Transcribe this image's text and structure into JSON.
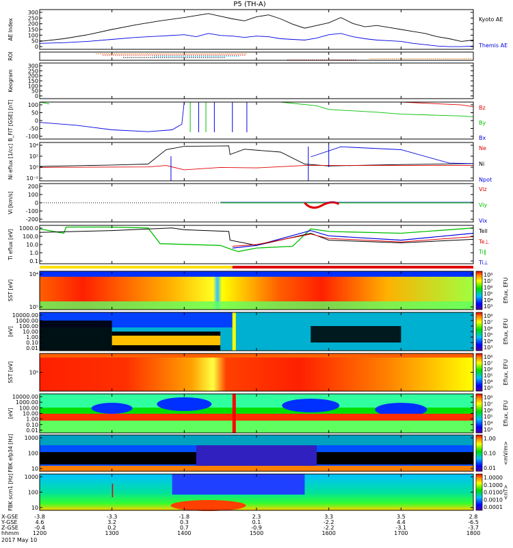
{
  "title": "P5 (TH-A)",
  "date_label": "2017 May 10",
  "colors": {
    "red": "#e00000",
    "green": "#00c000",
    "blue": "#0000e0",
    "black": "#000000",
    "orange": "#ff8000",
    "yellow": "#f0e000"
  },
  "chart_data": [
    {
      "id": "ae",
      "type": "line",
      "ylabel": "AE Index",
      "ylim": [
        0,
        300
      ],
      "yticks": [
        "300",
        "250",
        "200",
        "150",
        "100",
        "50",
        "0"
      ],
      "series": [
        {
          "name": "Kyoto AE",
          "color": "#000000",
          "x": [
            1200,
            1220,
            1240,
            1300,
            1320,
            1340,
            1400,
            1410,
            1420,
            1430,
            1440,
            1450,
            1500,
            1510,
            1520,
            1530,
            1540,
            1550,
            1600,
            1610,
            1620,
            1630,
            1640,
            1650,
            1700,
            1710,
            1720,
            1730,
            1740,
            1750,
            1800
          ],
          "values": [
            60,
            80,
            110,
            150,
            185,
            215,
            240,
            255,
            270,
            250,
            230,
            215,
            245,
            260,
            230,
            190,
            160,
            180,
            200,
            240,
            195,
            170,
            180,
            165,
            150,
            135,
            120,
            95,
            80,
            60,
            70
          ]
        },
        {
          "name": "Themis AE",
          "color": "#0000e0",
          "x": [
            1200,
            1220,
            1240,
            1300,
            1320,
            1340,
            1400,
            1410,
            1420,
            1430,
            1440,
            1450,
            1500,
            1510,
            1520,
            1530,
            1540,
            1550,
            1600,
            1610,
            1620,
            1630,
            1640,
            1650,
            1700,
            1710,
            1720,
            1730,
            1740,
            1750,
            1800
          ],
          "values": [
            45,
            50,
            60,
            75,
            90,
            100,
            110,
            95,
            120,
            105,
            100,
            90,
            100,
            95,
            80,
            75,
            70,
            85,
            110,
            120,
            95,
            80,
            70,
            65,
            60,
            45,
            35,
            25,
            20,
            20,
            25
          ]
        }
      ]
    },
    {
      "id": "roi",
      "type": "other",
      "ylabel": "ROI"
    },
    {
      "id": "keogram",
      "type": "heatmap",
      "ylabel": "Keogram",
      "ylim": [
        0,
        300
      ],
      "yticks": [
        "300",
        "250",
        "200",
        "150",
        "100",
        "50",
        "0"
      ]
    },
    {
      "id": "bfit",
      "type": "line",
      "ylabel": "B_FIT [GSE] [nT]",
      "ylim": [
        -100,
        100
      ],
      "yticks": [
        "100",
        "50",
        "0",
        "-50",
        "-100"
      ],
      "series": [
        {
          "name": "Bz",
          "color": "#e00000"
        },
        {
          "name": "By",
          "color": "#00c000"
        },
        {
          "name": "Bx",
          "color": "#0000e0"
        }
      ]
    },
    {
      "id": "density",
      "type": "line",
      "ylabel": "Ni eflux [1/cc]",
      "yscale": "log",
      "yticks": [
        "10⁴",
        "10²",
        "10⁰",
        "10⁻²"
      ],
      "series": [
        {
          "name": "Ne",
          "color": "#e00000"
        },
        {
          "name": "Ni",
          "color": "#000000"
        },
        {
          "name": "Npot",
          "color": "#0000e0"
        }
      ]
    },
    {
      "id": "velocity",
      "type": "line",
      "ylabel": "Vi [km/s]",
      "ylim": [
        -300,
        300
      ],
      "yticks": [
        "200",
        "100",
        "0",
        "-100",
        "-200"
      ],
      "series": [
        {
          "name": "Viz",
          "color": "#e00000"
        },
        {
          "name": "Viy",
          "color": "#00c000"
        },
        {
          "name": "Vix",
          "color": "#0000e0"
        }
      ]
    },
    {
      "id": "temperature",
      "type": "line",
      "ylabel": "Ti eflux [eV]",
      "yscale": "log",
      "yticks": [
        "1000.0",
        "100.0",
        "10.0",
        "1.0",
        "0.1"
      ],
      "series": [
        {
          "name": "Tell",
          "color": "#000000"
        },
        {
          "name": "Te⊥",
          "color": "#e00000"
        },
        {
          "name": "Ti∥",
          "color": "#00c000"
        },
        {
          "name": "Ti⊥",
          "color": "#0000e0"
        }
      ]
    },
    {
      "id": "sst_ion",
      "type": "heatmap",
      "ylabel": "SST [eV]",
      "yticks": [
        "10⁴",
        "10⁵"
      ],
      "colorbar": {
        "label": "Eflux, EFU",
        "ticks": [
          "10⁸",
          "10⁷",
          "10⁶",
          "10⁵",
          "10⁴",
          "10³"
        ]
      }
    },
    {
      "id": "esa_ion",
      "type": "heatmap",
      "ylabel": "[eV]",
      "yticks": [
        "10000.00",
        "1000.00",
        "100.00",
        "10.00",
        "1.00",
        "0.10",
        "0.01"
      ],
      "colorbar": {
        "label": "Eflux, EFU",
        "ticks": [
          "10⁸",
          "10⁷",
          "10⁶",
          "10⁵",
          "10⁴",
          "10³"
        ]
      }
    },
    {
      "id": "sst_electron",
      "type": "heatmap",
      "ylabel": "SST [eV]",
      "yticks": [
        "10⁵"
      ],
      "colorbar": {
        "label": "Eflux, EFU",
        "ticks": [
          "10⁸",
          "10⁷",
          "10⁶",
          "10⁵",
          "10⁴",
          "10³"
        ]
      }
    },
    {
      "id": "esa_electron",
      "type": "heatmap",
      "ylabel": "[eV]",
      "yticks": [
        "10000.00",
        "1000.00",
        "100.00",
        "10.00",
        "1.00",
        "0.10",
        "0.01"
      ],
      "colorbar": {
        "label": "Eflux, EFU",
        "ticks": [
          "10⁸",
          "10⁷",
          "10⁶",
          "10⁵",
          "10⁴",
          "10³"
        ]
      }
    },
    {
      "id": "fbk_e",
      "type": "heatmap",
      "ylabel": "FBK efp34 [Hz]",
      "yticks": [
        "1000",
        "100",
        "10"
      ],
      "colorbar": {
        "label": "<mV/m>",
        "ticks": [
          "1.00",
          "0.10",
          "0.01"
        ]
      }
    },
    {
      "id": "fbk_b",
      "type": "heatmap",
      "ylabel": "FBK scm1 [Hz]",
      "yticks": [
        "1000",
        "100",
        "10"
      ],
      "colorbar": {
        "label": "<nT>",
        "ticks": [
          "1.0000",
          "0.1000",
          "0.0100",
          "0.0010",
          "0.0001"
        ]
      }
    }
  ],
  "x_axis": {
    "row_labels": [
      "X-GSE",
      "Y-GSE",
      "Z-GSE",
      "hhmm"
    ],
    "columns": [
      {
        "x": "-3.8",
        "y": "4.6",
        "z": "-0.4",
        "time": "1200"
      },
      {
        "x": "-3.3",
        "y": "3.2",
        "z": "0.2",
        "time": "1300"
      },
      {
        "x": "-1.8",
        "y": "0.3",
        "z": "0.7",
        "time": "1400"
      },
      {
        "x": "2.3",
        "y": "0.1",
        "z": "-0.9",
        "time": "1500"
      },
      {
        "x": "3.3",
        "y": "-2.2",
        "z": "-2.2",
        "time": "1600"
      },
      {
        "x": "3.5",
        "y": "4.4",
        "z": "-3.1",
        "time": "1700"
      },
      {
        "x": "2.8",
        "y": "-6.5",
        "z": "-3.7",
        "time": "1800"
      }
    ]
  }
}
